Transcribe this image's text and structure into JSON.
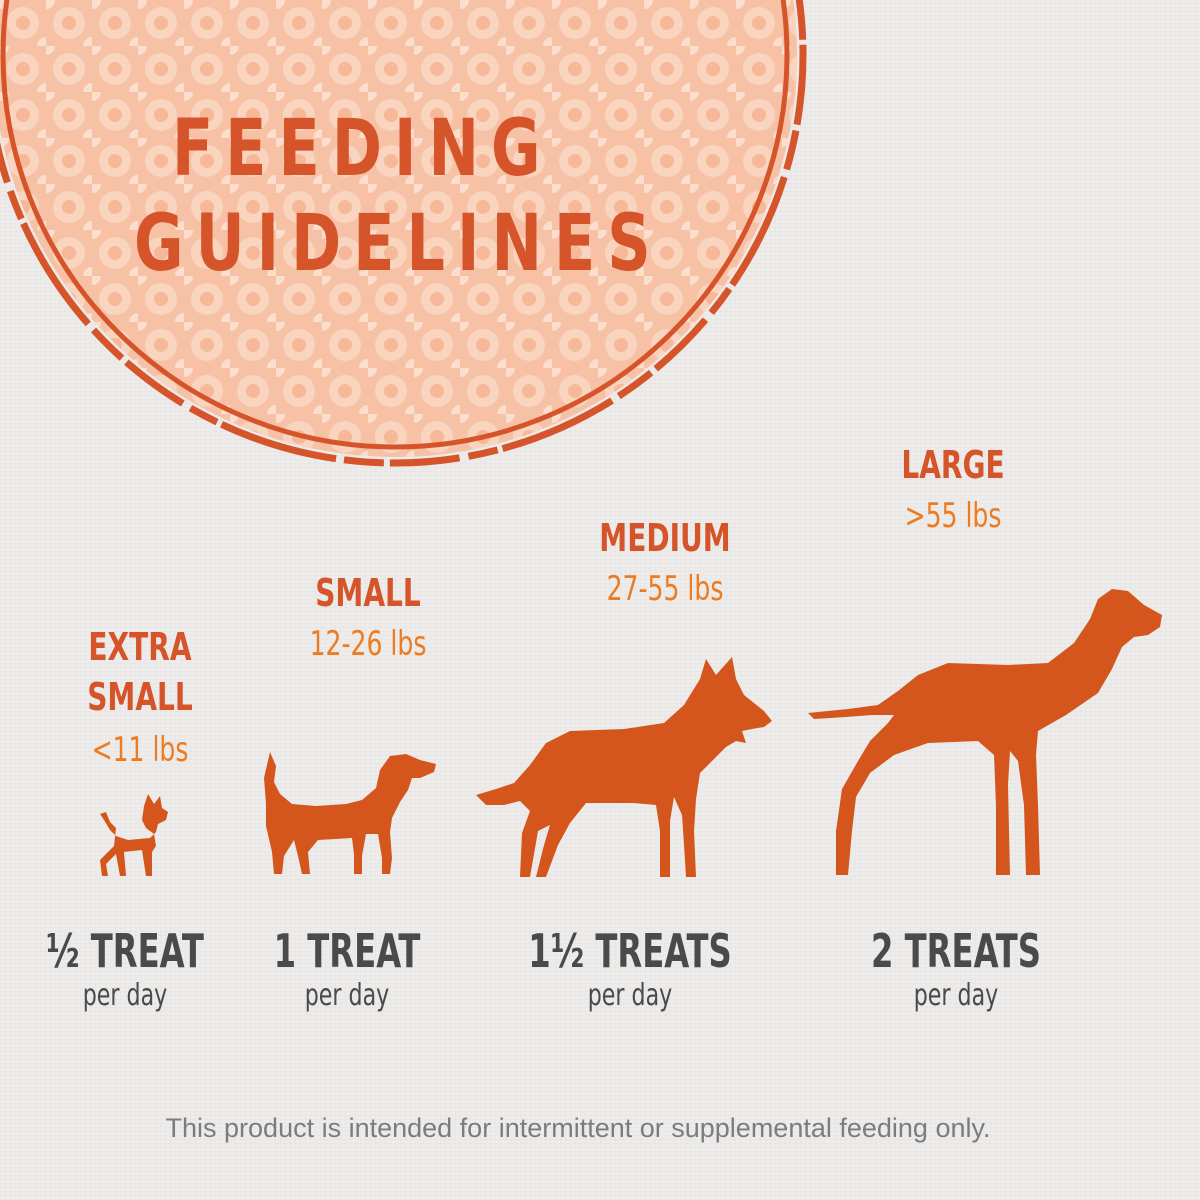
{
  "title": {
    "line1": "FEEDING",
    "line2": "GUIDELINES"
  },
  "colors": {
    "accent": "#d6542a",
    "weight_text": "#ec7b21",
    "dog": "#d4561c",
    "badge_fill": "#f7c1a6",
    "treat_text": "#4a4a4a",
    "disclaimer_text": "#7c7c7c"
  },
  "sizes": [
    {
      "name_line1": "EXTRA",
      "name_line2": "SMALL",
      "weight": "<11 lbs",
      "treat": "½ TREAT",
      "per": "per day",
      "icon": "chihuahua-silhouette-icon"
    },
    {
      "name_line1": "SMALL",
      "name_line2": "",
      "weight": "12-26 lbs",
      "treat": "1 TREAT",
      "per": "per day",
      "icon": "beagle-silhouette-icon"
    },
    {
      "name_line1": "MEDIUM",
      "name_line2": "",
      "weight": "27-55 lbs",
      "treat": "1½ TREATS",
      "per": "per day",
      "icon": "shepherd-silhouette-icon"
    },
    {
      "name_line1": "LARGE",
      "name_line2": "",
      "weight": ">55 lbs",
      "treat": "2 TREATS",
      "per": "per day",
      "icon": "great-dane-silhouette-icon"
    }
  ],
  "disclaimer": "This product is intended for intermittent or supplemental feeding only."
}
